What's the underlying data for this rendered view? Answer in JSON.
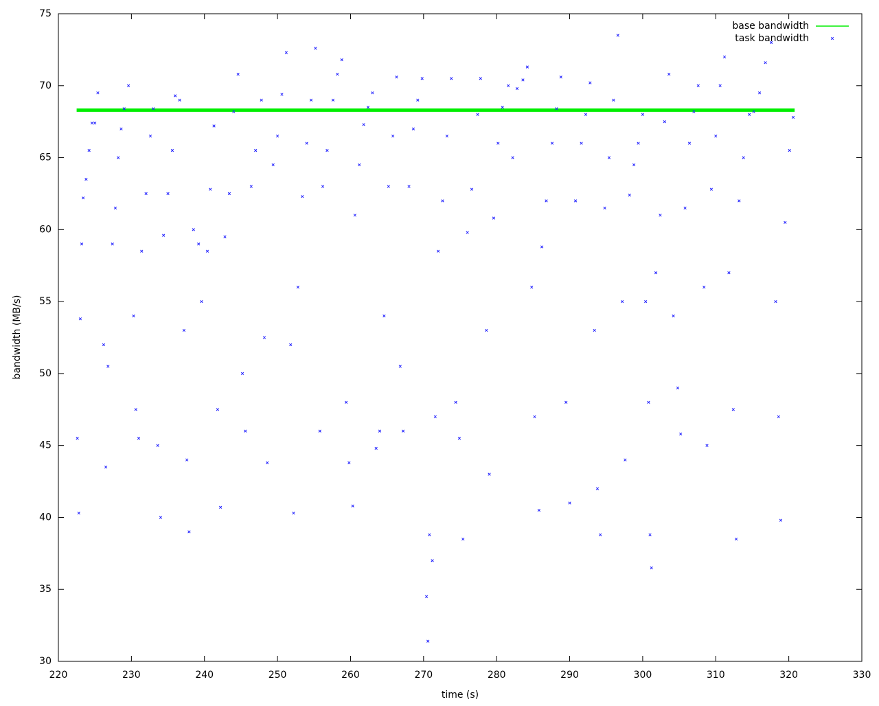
{
  "chart_data": {
    "type": "scatter",
    "xlabel": "time (s)",
    "ylabel": "bandwidth (MB/s)",
    "xlim": [
      220,
      330
    ],
    "xticks": [
      220,
      230,
      240,
      250,
      260,
      270,
      280,
      290,
      300,
      310,
      320,
      330
    ],
    "ylim": [
      30,
      75
    ],
    "yticks": [
      30,
      35,
      40,
      45,
      50,
      55,
      60,
      65,
      70,
      75
    ],
    "legend": "top-right",
    "series": [
      {
        "name": "base bandwidth",
        "color": "#00ee00",
        "mode": "lines",
        "x": [
          222.5,
          320.8
        ],
        "values": [
          68.3,
          68.3
        ]
      },
      {
        "name": "task bandwidth",
        "color": "#2222ff",
        "mode": "points",
        "x": [
          222.6,
          222.8,
          223.0,
          223.2,
          223.4,
          223.8,
          224.2,
          224.6,
          225.0,
          225.4,
          226.2,
          226.5,
          226.8,
          227.4,
          227.8,
          228.2,
          228.6,
          229.0,
          229.6,
          230.3,
          230.6,
          231.0,
          231.4,
          232.0,
          232.6,
          233.0,
          233.6,
          234.0,
          234.4,
          235.0,
          235.6,
          236.0,
          236.6,
          237.2,
          237.6,
          237.9,
          238.5,
          239.2,
          239.6,
          240.4,
          240.8,
          241.3,
          241.8,
          242.2,
          242.8,
          243.4,
          244.0,
          244.6,
          245.2,
          245.6,
          246.4,
          247.0,
          247.8,
          248.2,
          248.6,
          249.4,
          250.0,
          250.6,
          251.2,
          251.8,
          252.2,
          252.8,
          253.4,
          254.0,
          254.6,
          255.2,
          255.8,
          256.2,
          256.8,
          257.6,
          258.2,
          258.8,
          259.4,
          259.8,
          260.3,
          260.6,
          261.2,
          261.8,
          262.4,
          263.0,
          263.5,
          264.0,
          264.6,
          265.2,
          265.8,
          266.3,
          266.8,
          267.2,
          268.0,
          268.6,
          269.2,
          269.8,
          270.4,
          270.6,
          270.8,
          271.2,
          271.6,
          272.0,
          272.6,
          273.2,
          273.8,
          274.4,
          274.9,
          275.4,
          276.0,
          276.6,
          277.4,
          277.8,
          278.6,
          279.0,
          279.6,
          280.2,
          280.8,
          281.6,
          282.2,
          282.8,
          283.6,
          284.2,
          284.8,
          285.2,
          285.8,
          286.2,
          286.8,
          287.6,
          288.2,
          288.8,
          289.5,
          290.0,
          290.8,
          291.6,
          292.2,
          292.8,
          293.4,
          293.8,
          294.2,
          294.8,
          295.4,
          296.0,
          296.6,
          297.2,
          297.6,
          298.2,
          298.8,
          299.4,
          300.0,
          300.4,
          300.8,
          301.0,
          301.2,
          301.8,
          302.4,
          303.0,
          303.6,
          304.2,
          304.8,
          305.2,
          305.8,
          306.4,
          307.0,
          307.6,
          308.4,
          308.8,
          309.4,
          310.0,
          310.6,
          311.2,
          311.8,
          312.4,
          312.8,
          313.2,
          313.8,
          314.6,
          315.2,
          316.0,
          316.8,
          317.6,
          318.2,
          318.6,
          318.9,
          319.5,
          320.1,
          320.6
        ],
        "values": [
          45.5,
          40.3,
          53.8,
          59,
          62.2,
          63.5,
          65.5,
          67.4,
          67.4,
          69.5,
          52,
          43.5,
          50.5,
          59,
          61.5,
          65,
          67,
          68.4,
          70,
          54,
          47.5,
          45.5,
          58.5,
          62.5,
          66.5,
          68.4,
          45,
          40,
          59.6,
          62.5,
          65.5,
          69.3,
          69,
          53,
          44,
          39,
          60,
          59,
          55,
          58.5,
          62.8,
          67.2,
          47.5,
          40.7,
          59.5,
          62.5,
          68.2,
          70.8,
          50,
          46,
          63,
          65.5,
          69,
          52.5,
          43.8,
          64.5,
          66.5,
          69.4,
          72.3,
          52,
          40.3,
          56,
          62.3,
          66,
          69,
          72.6,
          46,
          63,
          65.5,
          69,
          70.8,
          71.8,
          48,
          43.8,
          40.8,
          61,
          64.5,
          67.3,
          68.5,
          69.5,
          44.8,
          46,
          54,
          63,
          66.5,
          70.6,
          50.5,
          46,
          63,
          67,
          69,
          70.5,
          34.5,
          31.4,
          38.8,
          37.0,
          47,
          58.5,
          62,
          66.5,
          70.5,
          48,
          45.5,
          38.5,
          59.8,
          62.8,
          68,
          70.5,
          53,
          43,
          60.8,
          66,
          68.5,
          70,
          65,
          69.8,
          70.4,
          71.3,
          56,
          47,
          40.5,
          58.8,
          62,
          66,
          68.4,
          70.6,
          48,
          41,
          62,
          66,
          68,
          70.2,
          53,
          42,
          38.8,
          61.5,
          65,
          69,
          73.5,
          55,
          44,
          62.4,
          64.5,
          66,
          68,
          55,
          48,
          38.8,
          36.5,
          57,
          61,
          67.5,
          70.8,
          54,
          49,
          45.8,
          61.5,
          66,
          68.2,
          70,
          56,
          45,
          62.8,
          66.5,
          70,
          72,
          57,
          47.5,
          38.5,
          62,
          65,
          68,
          68.2,
          69.5,
          71.6,
          73,
          55,
          47,
          39.8,
          60.5,
          65.5,
          67.8
        ]
      }
    ]
  }
}
